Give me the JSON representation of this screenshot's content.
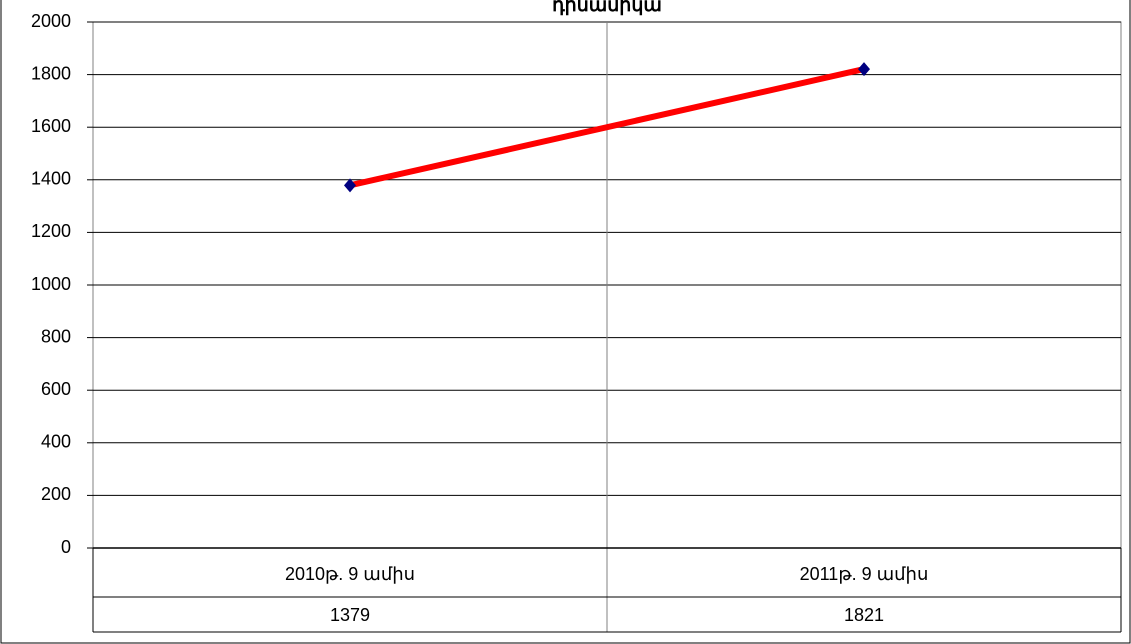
{
  "chart_data": {
    "type": "line",
    "title": "դինամիկա",
    "categories": [
      "2010թ. 9 ամիս",
      "2011թ. 9 ամիս"
    ],
    "values": [
      1379,
      1821
    ],
    "color": "#ff0000",
    "marker_color": "#000080",
    "ylim": [
      0,
      2000
    ],
    "yticks": [
      0,
      200,
      400,
      600,
      800,
      1000,
      1200,
      1400,
      1600,
      1800,
      2000
    ],
    "grid": true,
    "data_table": true
  }
}
